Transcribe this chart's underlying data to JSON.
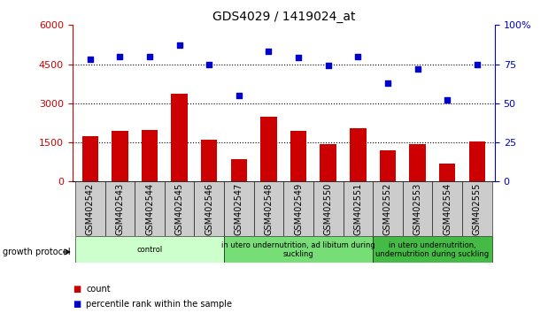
{
  "title": "GDS4029 / 1419024_at",
  "samples": [
    "GSM402542",
    "GSM402543",
    "GSM402544",
    "GSM402545",
    "GSM402546",
    "GSM402547",
    "GSM402548",
    "GSM402549",
    "GSM402550",
    "GSM402551",
    "GSM402552",
    "GSM402553",
    "GSM402554",
    "GSM402555"
  ],
  "counts": [
    1750,
    1950,
    1980,
    3350,
    1600,
    850,
    2500,
    1950,
    1450,
    2050,
    1200,
    1450,
    700,
    1550
  ],
  "percentiles": [
    78,
    80,
    80,
    87,
    75,
    55,
    83,
    79,
    74,
    80,
    63,
    72,
    52,
    75
  ],
  "ylim_left": [
    0,
    6000
  ],
  "ylim_right": [
    0,
    100
  ],
  "yticks_left": [
    0,
    1500,
    3000,
    4500,
    6000
  ],
  "yticks_right": [
    0,
    25,
    50,
    75,
    100
  ],
  "hlines": [
    1500,
    3000,
    4500
  ],
  "bar_color": "#cc0000",
  "dot_color": "#0000cc",
  "grid_color": "#000000",
  "groups": [
    {
      "label": "control",
      "start": 0,
      "end": 5,
      "color": "#ccffcc"
    },
    {
      "label": "in utero undernutrition, ad libitum during\nsuckling",
      "start": 5,
      "end": 10,
      "color": "#77dd77"
    },
    {
      "label": "in utero undernutrition,\nundernutrition during suckling",
      "start": 10,
      "end": 14,
      "color": "#44bb44"
    }
  ],
  "growth_protocol_label": "growth protocol",
  "legend_count_label": "count",
  "legend_pct_label": "percentile rank within the sample",
  "tick_bg_color": "#cccccc",
  "title_fontsize": 10,
  "axis_label_fontsize": 8,
  "tick_label_fontsize": 7,
  "right_axis_color": "#0000cc",
  "left_axis_color": "#cc0000",
  "right_ylabel": "100%"
}
